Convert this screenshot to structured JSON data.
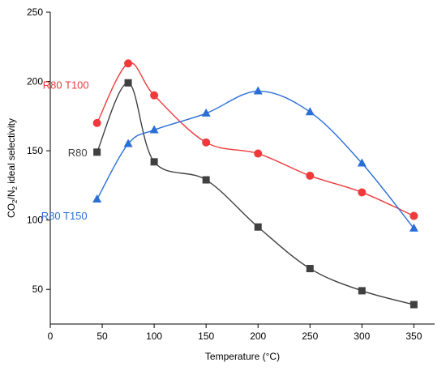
{
  "chart_data": {
    "type": "scatter",
    "title": "",
    "xlabel": "Temperature (°C)",
    "ylabel": {
      "p1": "CO",
      "s1": "2",
      "p2": "/N",
      "s2": "2",
      "p3": " ideal selectivity"
    },
    "xlim": [
      0,
      370
    ],
    "ylim": [
      25,
      250
    ],
    "xticks": [
      0,
      50,
      100,
      150,
      200,
      250,
      300,
      350
    ],
    "yticks": [
      50,
      100,
      150,
      200,
      250
    ],
    "grid": false,
    "legend": "none",
    "series": [
      {
        "name": "R80",
        "color": "#404040",
        "marker": "square",
        "x": [
          45,
          75,
          100,
          150,
          200,
          250,
          300,
          350
        ],
        "y": [
          149,
          199,
          142,
          129,
          95,
          65,
          49,
          39
        ],
        "label_x": 45,
        "label_y": 149
      },
      {
        "name": "R80 T100",
        "color": "#ee3a3a",
        "marker": "circle",
        "x": [
          45,
          75,
          100,
          150,
          200,
          250,
          300,
          350
        ],
        "y": [
          170,
          213,
          190,
          156,
          148,
          132,
          120,
          103
        ],
        "label_x": 45,
        "label_y": 190
      },
      {
        "name": "R80 T150",
        "color": "#2a6fd6",
        "marker": "triangle",
        "x": [
          45,
          75,
          100,
          150,
          200,
          250,
          300,
          350
        ],
        "y": [
          115,
          155,
          165,
          177,
          193,
          178,
          141,
          94
        ],
        "label_x": 45,
        "label_y": 108
      }
    ]
  }
}
